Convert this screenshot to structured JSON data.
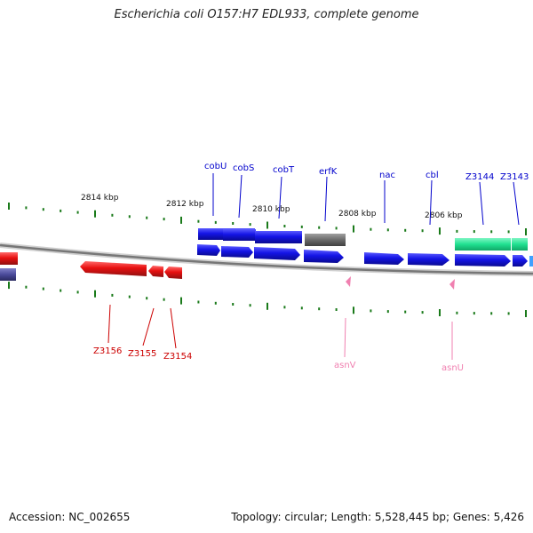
{
  "title": "Escherichia coli O157:H7 EDL933, complete genome",
  "footer": {
    "accession": "Accession: NC_002655",
    "summary": "Topology: circular; Length: 5,528,445 bp; Genes: 5,426"
  },
  "colors": {
    "backbone": "#888888",
    "tick": "#1a7a1a",
    "forward": "#1010e0",
    "reverse": "#e01010",
    "trna": "#f080b0",
    "rrna_like": "#30e0a0",
    "pseudo": "#6e6e6e",
    "partial": "#5050a0"
  },
  "scale_labels": [
    "2814 kbp",
    "2812 kbp",
    "2810 kbp",
    "2808 kbp",
    "2806 kbp"
  ],
  "gene_labels": {
    "forward": [
      "cobU",
      "cobS",
      "cobT",
      "erfK",
      "nac",
      "cbl",
      "Z3144",
      "Z3143"
    ],
    "reverse": [
      "Z3156",
      "Z3155",
      "Z3154"
    ],
    "trna": [
      "asnV",
      "asnU"
    ]
  }
}
